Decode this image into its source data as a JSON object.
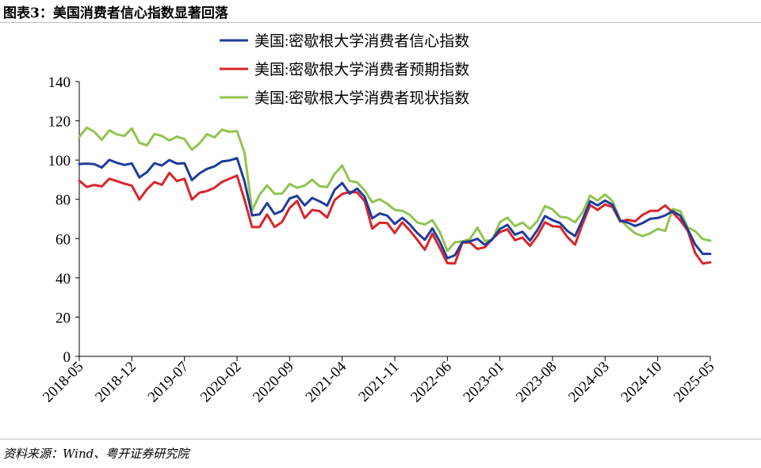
{
  "header": {
    "title": "图表3：美国消费者信心指数显著回落"
  },
  "footer": {
    "source": "资料来源：Wind、粤开证券研究院"
  },
  "chart_data": {
    "type": "line",
    "title": "",
    "xlabel": "",
    "ylabel": "",
    "ylim": [
      0,
      140
    ],
    "yticks": [
      0,
      20,
      40,
      60,
      80,
      100,
      120,
      140
    ],
    "x": [
      "2018-05",
      "2018-06",
      "2018-07",
      "2018-08",
      "2018-09",
      "2018-10",
      "2018-11",
      "2018-12",
      "2019-01",
      "2019-02",
      "2019-03",
      "2019-04",
      "2019-05",
      "2019-06",
      "2019-07",
      "2019-08",
      "2019-09",
      "2019-10",
      "2019-11",
      "2019-12",
      "2020-01",
      "2020-02",
      "2020-03",
      "2020-04",
      "2020-05",
      "2020-06",
      "2020-07",
      "2020-08",
      "2020-09",
      "2020-10",
      "2020-11",
      "2020-12",
      "2021-01",
      "2021-02",
      "2021-03",
      "2021-04",
      "2021-05",
      "2021-06",
      "2021-07",
      "2021-08",
      "2021-09",
      "2021-10",
      "2021-11",
      "2021-12",
      "2022-01",
      "2022-02",
      "2022-03",
      "2022-04",
      "2022-05",
      "2022-06",
      "2022-07",
      "2022-08",
      "2022-09",
      "2022-10",
      "2022-11",
      "2022-12",
      "2023-01",
      "2023-02",
      "2023-03",
      "2023-04",
      "2023-05",
      "2023-06",
      "2023-07",
      "2023-08",
      "2023-09",
      "2023-10",
      "2023-11",
      "2023-12",
      "2024-01",
      "2024-02",
      "2024-03",
      "2024-04",
      "2024-05",
      "2024-06",
      "2024-07",
      "2024-08",
      "2024-09",
      "2024-10",
      "2024-11",
      "2024-12",
      "2025-01",
      "2025-02",
      "2025-03",
      "2025-04",
      "2025-05"
    ],
    "xtick_labels": [
      "2018-05",
      "2018-12",
      "2019-07",
      "2020-02",
      "2020-09",
      "2021-04",
      "2021-11",
      "2022-06",
      "2023-01",
      "2023-08",
      "2024-03",
      "2024-10",
      "2025-05"
    ],
    "legend_position": "top",
    "grid": false,
    "series": [
      {
        "name": "美国:密歇根大学消费者信心指数",
        "color": "#1f3d99",
        "values": [
          98.0,
          98.2,
          97.9,
          96.2,
          100.1,
          98.6,
          97.5,
          98.3,
          91.2,
          93.8,
          98.4,
          97.2,
          100.0,
          98.2,
          98.4,
          89.8,
          93.2,
          95.5,
          96.8,
          99.3,
          99.8,
          101.0,
          89.1,
          71.8,
          72.3,
          78.1,
          72.5,
          74.1,
          80.4,
          81.8,
          76.9,
          80.7,
          79.0,
          76.8,
          84.9,
          88.3,
          82.9,
          85.5,
          81.2,
          70.3,
          72.8,
          71.7,
          67.4,
          70.6,
          67.2,
          62.8,
          59.4,
          65.2,
          58.4,
          50.0,
          51.5,
          58.2,
          58.6,
          59.9,
          56.8,
          59.7,
          64.9,
          67.0,
          62.0,
          63.5,
          59.0,
          64.4,
          71.5,
          69.4,
          67.9,
          63.8,
          61.3,
          69.7,
          79.0,
          76.9,
          79.4,
          77.2,
          69.1,
          68.2,
          66.4,
          67.9,
          70.1,
          70.5,
          71.8,
          74.0,
          71.7,
          64.7,
          57.0,
          52.2,
          52.2
        ]
      },
      {
        "name": "美国:密歇根大学消费者预期指数",
        "color": "#d9252a",
        "values": [
          89.5,
          86.3,
          87.3,
          86.6,
          90.5,
          89.3,
          88.0,
          87.0,
          79.9,
          85.1,
          88.8,
          87.4,
          93.5,
          89.3,
          90.5,
          79.9,
          83.4,
          84.2,
          85.9,
          88.9,
          90.5,
          92.1,
          79.7,
          65.9,
          65.9,
          72.3,
          65.9,
          68.5,
          75.6,
          79.2,
          70.5,
          74.6,
          74.0,
          70.7,
          79.7,
          82.7,
          83.8,
          83.5,
          79.0,
          65.1,
          68.1,
          67.9,
          62.8,
          68.3,
          64.1,
          59.4,
          54.3,
          62.5,
          55.2,
          47.5,
          47.3,
          58.0,
          58.0,
          54.7,
          55.6,
          59.9,
          63.3,
          64.7,
          59.2,
          60.5,
          56.3,
          61.5,
          68.3,
          66.3,
          66.0,
          60.7,
          56.9,
          67.4,
          77.1,
          74.6,
          77.4,
          76.0,
          68.8,
          69.6,
          68.8,
          72.1,
          74.1,
          74.1,
          76.9,
          73.3,
          69.3,
          64.0,
          52.6,
          47.3,
          47.9
        ]
      },
      {
        "name": "美国:密歇根大学消费者现状指数",
        "color": "#92c350",
        "values": [
          111.8,
          116.5,
          114.4,
          110.3,
          115.2,
          113.1,
          112.3,
          116.1,
          108.8,
          107.5,
          113.3,
          112.3,
          110.0,
          111.9,
          110.7,
          105.3,
          108.5,
          113.2,
          111.6,
          115.5,
          114.4,
          114.8,
          103.7,
          74.3,
          82.3,
          87.1,
          82.8,
          82.9,
          87.8,
          85.9,
          87.0,
          90.0,
          86.7,
          86.2,
          93.0,
          97.2,
          89.4,
          88.6,
          84.5,
          78.5,
          80.1,
          77.7,
          74.6,
          74.2,
          72.0,
          68.2,
          67.2,
          69.4,
          63.3,
          53.8,
          58.1,
          58.6,
          59.7,
          65.6,
          58.8,
          59.4,
          68.4,
          70.7,
          66.3,
          68.2,
          64.9,
          69.0,
          76.6,
          74.9,
          71.1,
          70.6,
          68.3,
          73.3,
          81.9,
          79.4,
          82.5,
          79.0,
          69.6,
          65.9,
          62.7,
          61.3,
          62.7,
          64.9,
          63.9,
          75.1,
          74.0,
          65.7,
          63.8,
          59.8,
          58.9
        ]
      }
    ]
  }
}
